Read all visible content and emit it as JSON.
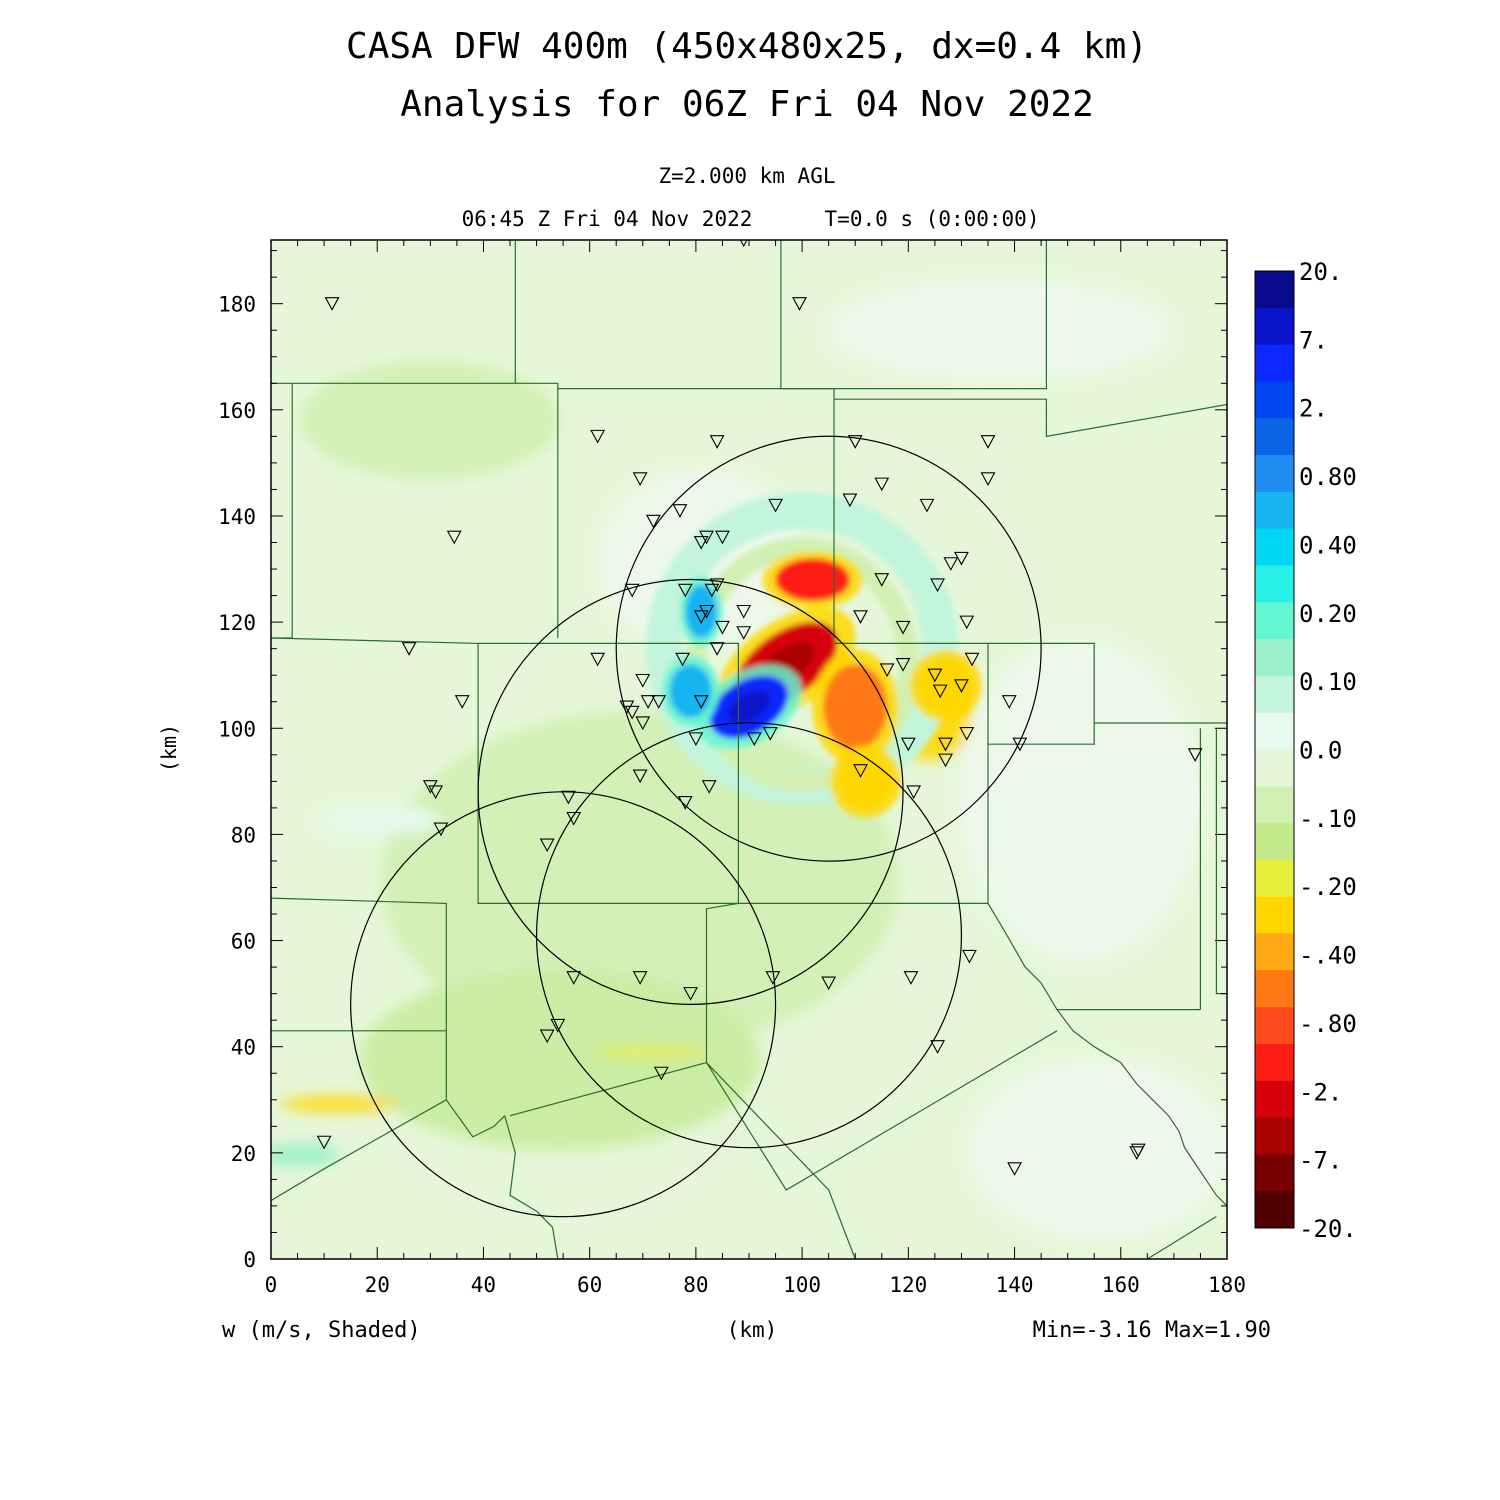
{
  "header": {
    "title_line1": "CASA DFW 400m (450x480x25, dx=0.4 km)",
    "title_line2": "Analysis for 06Z Fri 04 Nov 2022",
    "level": "Z=2.000 km AGL",
    "time": "06:45 Z Fri 04 Nov 2022",
    "elapsed": "T=0.0 s (0:00:00)"
  },
  "footer": {
    "variable": "w (m/s, Shaded)",
    "x_unit": "(km)",
    "range": "Min=-3.16 Max=1.90"
  },
  "colors": {
    "background": "#e6f7d9",
    "boundary": "#2f6b2f",
    "ring": "#000000"
  },
  "chart_data": {
    "type": "heatmap",
    "variable": "w",
    "units": "m/s",
    "xlabel": "(km)",
    "ylabel": "(km)",
    "xlim": [
      0,
      180
    ],
    "ylim": [
      0,
      192
    ],
    "x_ticks": [
      0,
      20,
      40,
      60,
      80,
      100,
      120,
      140,
      160,
      180
    ],
    "y_ticks": [
      0,
      20,
      40,
      60,
      80,
      100,
      120,
      140,
      160,
      180
    ],
    "x_tick_labels": [
      "0",
      "20",
      "40",
      "60",
      "80",
      "100",
      "120",
      "140",
      "160",
      "180"
    ],
    "y_tick_labels": [
      "0",
      "20",
      "40",
      "60",
      "80",
      "100",
      "120",
      "140",
      "160",
      "180"
    ],
    "min": -3.16,
    "max": 1.9,
    "colorbar": {
      "labels": [
        "20.",
        "7.",
        "2.",
        "0.80",
        "0.40",
        "0.20",
        "0.10",
        "0.0",
        "-.10",
        "-.20",
        "-.40",
        "-.80",
        "-2.",
        "-7.",
        "-20."
      ],
      "colors": [
        "#0a0a8c",
        "#0a14c8",
        "#0a28ff",
        "#0046f0",
        "#0a64e6",
        "#1e8cf0",
        "#14b4f0",
        "#00d7f5",
        "#28f0e6",
        "#64f5d2",
        "#9bf0c8",
        "#c3f5dc",
        "#e6faf0",
        "#e6f7d9",
        "#d2f0b4",
        "#c3eb8c",
        "#e6f03c",
        "#ffd700",
        "#ffaa14",
        "#ff7814",
        "#ff4b1e",
        "#ff1e14",
        "#d7000a",
        "#aa0000",
        "#780000",
        "#500000"
      ]
    },
    "features": [
      {
        "kind": "downdraft",
        "x": 97,
        "y": 112,
        "value": -3.16
      },
      {
        "kind": "downdraft",
        "x": 102,
        "y": 128,
        "value": -0.9
      },
      {
        "kind": "downdraft",
        "x": 110,
        "y": 104,
        "value": -0.6
      },
      {
        "kind": "downdraft",
        "x": 112,
        "y": 90,
        "value": -0.3
      },
      {
        "kind": "downdraft",
        "x": 127,
        "y": 108,
        "value": -0.3
      },
      {
        "kind": "updraft",
        "x": 90,
        "y": 104,
        "value": 1.9
      },
      {
        "kind": "updraft",
        "x": 79,
        "y": 107,
        "value": 0.6
      },
      {
        "kind": "updraft",
        "x": 81,
        "y": 122,
        "value": 0.4
      }
    ],
    "radar_rings": [
      {
        "cx": 105,
        "cy": 115,
        "r": 40
      },
      {
        "cx": 79,
        "cy": 88,
        "r": 40
      },
      {
        "cx": 90,
        "cy": 61,
        "r": 40
      },
      {
        "cx": 55,
        "cy": 48,
        "r": 40
      }
    ],
    "stations": [
      [
        11.5,
        180
      ],
      [
        89,
        192
      ],
      [
        99.5,
        180
      ],
      [
        61.5,
        155
      ],
      [
        69.5,
        147
      ],
      [
        84,
        154
      ],
      [
        110,
        154
      ],
      [
        135,
        154
      ],
      [
        34.5,
        136
      ],
      [
        72,
        139
      ],
      [
        77,
        141
      ],
      [
        82,
        136
      ],
      [
        81,
        135
      ],
      [
        85,
        136
      ],
      [
        95,
        142
      ],
      [
        109,
        143
      ],
      [
        115,
        146
      ],
      [
        123.5,
        142
      ],
      [
        135,
        147
      ],
      [
        128,
        131
      ],
      [
        130,
        132
      ],
      [
        68,
        126
      ],
      [
        78,
        126
      ],
      [
        83,
        126
      ],
      [
        84,
        127
      ],
      [
        82,
        122
      ],
      [
        81,
        121
      ],
      [
        89,
        122
      ],
      [
        125.5,
        127
      ],
      [
        115,
        128
      ],
      [
        111,
        121
      ],
      [
        131,
        120
      ],
      [
        85,
        119
      ],
      [
        89,
        118
      ],
      [
        119,
        119
      ],
      [
        26,
        115
      ],
      [
        61.5,
        113
      ],
      [
        77.5,
        113
      ],
      [
        84,
        115
      ],
      [
        116,
        111
      ],
      [
        119,
        112
      ],
      [
        132,
        113
      ],
      [
        125,
        110
      ],
      [
        130,
        108
      ],
      [
        126,
        107
      ],
      [
        36,
        105
      ],
      [
        67,
        104
      ],
      [
        68,
        103
      ],
      [
        70,
        109
      ],
      [
        71,
        105
      ],
      [
        73,
        105
      ],
      [
        70,
        101
      ],
      [
        81,
        105
      ],
      [
        139,
        105
      ],
      [
        80,
        98
      ],
      [
        91,
        98
      ],
      [
        94,
        99
      ],
      [
        120,
        97
      ],
      [
        127,
        97
      ],
      [
        131,
        99
      ],
      [
        141,
        97
      ],
      [
        174,
        95
      ],
      [
        127,
        94
      ],
      [
        30,
        89
      ],
      [
        31,
        88
      ],
      [
        32,
        81
      ],
      [
        69.5,
        91
      ],
      [
        82.5,
        89
      ],
      [
        111,
        92
      ],
      [
        121,
        88
      ],
      [
        56,
        87
      ],
      [
        57,
        83
      ],
      [
        52,
        78
      ],
      [
        78,
        86
      ],
      [
        57,
        53
      ],
      [
        69.5,
        53
      ],
      [
        79,
        50
      ],
      [
        94.5,
        53
      ],
      [
        105,
        52
      ],
      [
        120.5,
        53
      ],
      [
        131.5,
        57
      ],
      [
        52,
        42
      ],
      [
        54,
        44
      ],
      [
        125.5,
        40
      ],
      [
        73.5,
        35
      ],
      [
        10,
        22
      ],
      [
        140,
        17
      ],
      [
        163,
        20
      ],
      [
        163.3,
        20.5
      ]
    ],
    "boundaries": [
      [
        [
          0,
          165
        ],
        [
          4,
          165
        ],
        [
          4,
          117
        ],
        [
          0,
          117
        ]
      ],
      [
        [
          4,
          165
        ],
        [
          54,
          165
        ],
        [
          54,
          117
        ]
      ],
      [
        [
          46,
          192
        ],
        [
          46,
          165
        ]
      ],
      [
        [
          96,
          192
        ],
        [
          96,
          164
        ],
        [
          146,
          164
        ],
        [
          146,
          192
        ]
      ],
      [
        [
          54,
          164
        ],
        [
          106,
          164
        ],
        [
          106,
          117
        ]
      ],
      [
        [
          106,
          162
        ],
        [
          146,
          162
        ],
        [
          146,
          155
        ],
        [
          180,
          161
        ]
      ],
      [
        [
          0,
          117
        ],
        [
          39,
          116
        ],
        [
          39,
          67
        ],
        [
          88,
          67
        ]
      ],
      [
        [
          39,
          116
        ],
        [
          88,
          116
        ],
        [
          88,
          67
        ],
        [
          135,
          67
        ],
        [
          135,
          97
        ]
      ],
      [
        [
          106,
          116
        ],
        [
          155,
          116
        ],
        [
          155,
          101
        ],
        [
          170,
          101
        ],
        [
          180,
          101
        ]
      ],
      [
        [
          135,
          116
        ],
        [
          135,
          97
        ],
        [
          155,
          97
        ],
        [
          155,
          101
        ]
      ],
      [
        [
          0,
          68
        ],
        [
          33,
          67
        ],
        [
          33,
          30
        ],
        [
          38,
          23
        ],
        [
          42,
          25
        ],
        [
          44,
          27
        ]
      ],
      [
        [
          0,
          43
        ],
        [
          33,
          43
        ]
      ],
      [
        [
          33,
          30
        ],
        [
          10,
          17
        ],
        [
          0,
          11
        ]
      ],
      [
        [
          88,
          67
        ],
        [
          82,
          66
        ],
        [
          82,
          37
        ],
        [
          45,
          27
        ]
      ],
      [
        [
          82,
          37
        ],
        [
          105,
          13
        ],
        [
          110,
          0
        ]
      ],
      [
        [
          82,
          37
        ],
        [
          97,
          13
        ],
        [
          148,
          43
        ]
      ],
      [
        [
          135,
          67
        ],
        [
          138,
          62
        ],
        [
          142,
          55
        ],
        [
          145,
          52
        ],
        [
          148,
          47
        ],
        [
          151,
          43
        ],
        [
          155,
          40
        ],
        [
          160,
          37
        ],
        [
          163,
          33
        ],
        [
          166,
          30
        ],
        [
          169,
          27
        ],
        [
          171,
          24
        ],
        [
          172,
          21
        ],
        [
          174,
          18
        ],
        [
          176,
          15
        ],
        [
          178,
          12
        ],
        [
          180,
          10
        ]
      ],
      [
        [
          148,
          47
        ],
        [
          175,
          47
        ]
      ],
      [
        [
          175,
          47
        ],
        [
          175,
          100
        ]
      ],
      [
        [
          178,
          100
        ],
        [
          178,
          50
        ],
        [
          180,
          50
        ]
      ],
      [
        [
          178,
          8
        ],
        [
          165,
          0
        ]
      ],
      [
        [
          44,
          27
        ],
        [
          46,
          20
        ],
        [
          45,
          12
        ],
        [
          50,
          9
        ],
        [
          53,
          6
        ],
        [
          54,
          0
        ]
      ]
    ]
  }
}
